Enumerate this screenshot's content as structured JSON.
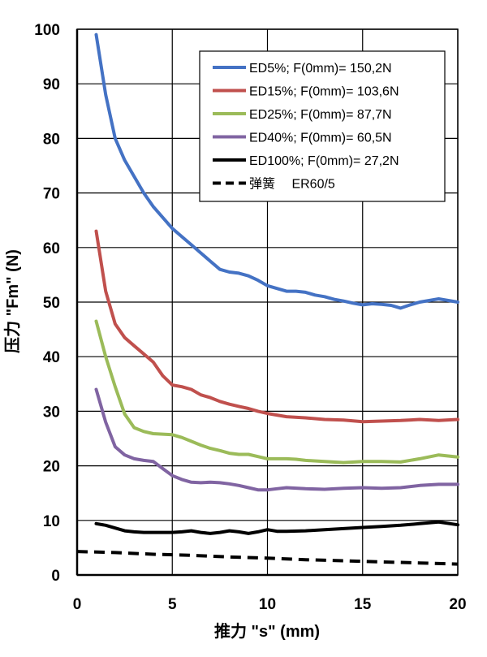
{
  "chart_data": {
    "type": "line",
    "title": "",
    "xlabel": "推力 \"s\" (mm)",
    "ylabel": "压力 \"Fm\" (N)",
    "xlim": [
      0,
      20
    ],
    "ylim": [
      0,
      100
    ],
    "xticks": [
      0,
      5,
      10,
      15,
      20
    ],
    "yticks": [
      0,
      10,
      20,
      30,
      40,
      50,
      60,
      70,
      80,
      90,
      100
    ],
    "grid": true,
    "legend_position": "top-right",
    "series": [
      {
        "name": "ED5%; F(0mm)= 150,2N",
        "color": "#4472C4",
        "style": "solid",
        "points": [
          [
            1,
            99
          ],
          [
            1.5,
            88
          ],
          [
            2,
            80
          ],
          [
            2.5,
            76
          ],
          [
            3,
            73
          ],
          [
            3.5,
            70
          ],
          [
            4,
            67.5
          ],
          [
            4.5,
            65.5
          ],
          [
            5,
            63.5
          ],
          [
            5.5,
            62
          ],
          [
            6,
            60.5
          ],
          [
            6.5,
            59
          ],
          [
            7,
            57.5
          ],
          [
            7.5,
            56
          ],
          [
            8,
            55.5
          ],
          [
            8.5,
            55.3
          ],
          [
            9,
            54.8
          ],
          [
            9.5,
            54
          ],
          [
            10,
            53
          ],
          [
            10.5,
            52.5
          ],
          [
            11,
            52
          ],
          [
            11.5,
            52
          ],
          [
            12,
            51.8
          ],
          [
            12.5,
            51.3
          ],
          [
            13,
            51
          ],
          [
            13.5,
            50.5
          ],
          [
            14,
            50.2
          ],
          [
            14.5,
            49.8
          ],
          [
            15,
            49.5
          ],
          [
            15.5,
            49.7
          ],
          [
            16,
            49.6
          ],
          [
            16.5,
            49.4
          ],
          [
            17,
            48.9
          ],
          [
            17.5,
            49.5
          ],
          [
            18,
            50
          ],
          [
            18.5,
            50.3
          ],
          [
            19,
            50.6
          ],
          [
            19.5,
            50.3
          ],
          [
            20,
            50
          ]
        ]
      },
      {
        "name": "ED15%; F(0mm)= 103,6N",
        "color": "#C0504D",
        "style": "solid",
        "points": [
          [
            1,
            63
          ],
          [
            1.5,
            52
          ],
          [
            2,
            46
          ],
          [
            2.5,
            43.5
          ],
          [
            3,
            42
          ],
          [
            3.5,
            40.5
          ],
          [
            4,
            39
          ],
          [
            4.5,
            36.5
          ],
          [
            5,
            34.8
          ],
          [
            5.5,
            34.5
          ],
          [
            6,
            34
          ],
          [
            6.5,
            33
          ],
          [
            7,
            32.5
          ],
          [
            7.5,
            31.8
          ],
          [
            8,
            31.3
          ],
          [
            8.5,
            30.9
          ],
          [
            9,
            30.5
          ],
          [
            9.5,
            30
          ],
          [
            10,
            29.6
          ],
          [
            10.5,
            29.3
          ],
          [
            11,
            29
          ],
          [
            12,
            28.8
          ],
          [
            13,
            28.5
          ],
          [
            14,
            28.4
          ],
          [
            15,
            28.1
          ],
          [
            16,
            28.2
          ],
          [
            17,
            28.3
          ],
          [
            18,
            28.5
          ],
          [
            19,
            28.3
          ],
          [
            20,
            28.5
          ]
        ]
      },
      {
        "name": "ED25%; F(0mm)= 87,7N",
        "color": "#9BBB59",
        "style": "solid",
        "points": [
          [
            1,
            46.5
          ],
          [
            1.5,
            40
          ],
          [
            2,
            34.5
          ],
          [
            2.5,
            29.5
          ],
          [
            3,
            27
          ],
          [
            3.5,
            26.3
          ],
          [
            4,
            25.9
          ],
          [
            4.5,
            25.8
          ],
          [
            5,
            25.7
          ],
          [
            5.5,
            25.2
          ],
          [
            6,
            24.5
          ],
          [
            6.5,
            23.8
          ],
          [
            7,
            23.2
          ],
          [
            7.5,
            22.8
          ],
          [
            8,
            22.3
          ],
          [
            8.5,
            22.1
          ],
          [
            9,
            22.1
          ],
          [
            9.5,
            21.7
          ],
          [
            10,
            21.3
          ],
          [
            10.5,
            21.3
          ],
          [
            11,
            21.3
          ],
          [
            11.5,
            21.2
          ],
          [
            12,
            21
          ],
          [
            13,
            20.8
          ],
          [
            14,
            20.6
          ],
          [
            15,
            20.8
          ],
          [
            16,
            20.8
          ],
          [
            17,
            20.7
          ],
          [
            18,
            21.3
          ],
          [
            19,
            22
          ],
          [
            20,
            21.6
          ]
        ]
      },
      {
        "name": "ED40%; F(0mm)= 60,5N",
        "color": "#8064A2",
        "style": "solid",
        "points": [
          [
            1,
            34
          ],
          [
            1.5,
            28
          ],
          [
            2,
            23.5
          ],
          [
            2.5,
            22
          ],
          [
            3,
            21.3
          ],
          [
            3.5,
            21
          ],
          [
            4,
            20.8
          ],
          [
            4.5,
            19.5
          ],
          [
            5,
            18.2
          ],
          [
            5.5,
            17.5
          ],
          [
            6,
            17
          ],
          [
            6.5,
            16.9
          ],
          [
            7,
            17
          ],
          [
            7.5,
            16.9
          ],
          [
            8,
            16.7
          ],
          [
            8.5,
            16.4
          ],
          [
            9,
            16
          ],
          [
            9.5,
            15.6
          ],
          [
            10,
            15.6
          ],
          [
            10.5,
            15.8
          ],
          [
            11,
            16
          ],
          [
            12,
            15.8
          ],
          [
            13,
            15.7
          ],
          [
            14,
            15.9
          ],
          [
            15,
            16
          ],
          [
            16,
            15.9
          ],
          [
            17,
            16
          ],
          [
            18,
            16.4
          ],
          [
            19,
            16.6
          ],
          [
            20,
            16.6
          ]
        ]
      },
      {
        "name": "ED100%; F(0mm)= 27,2N",
        "color": "#000000",
        "style": "solid",
        "points": [
          [
            1,
            9.4
          ],
          [
            1.5,
            9.1
          ],
          [
            2,
            8.6
          ],
          [
            2.5,
            8.1
          ],
          [
            3,
            7.9
          ],
          [
            3.5,
            7.8
          ],
          [
            4,
            7.8
          ],
          [
            4.5,
            7.8
          ],
          [
            5,
            7.8
          ],
          [
            5.5,
            7.9
          ],
          [
            6,
            8.1
          ],
          [
            6.5,
            7.8
          ],
          [
            7,
            7.6
          ],
          [
            7.5,
            7.8
          ],
          [
            8,
            8.1
          ],
          [
            8.5,
            7.9
          ],
          [
            9,
            7.6
          ],
          [
            9.5,
            7.9
          ],
          [
            10,
            8.3
          ],
          [
            10.5,
            8
          ],
          [
            11,
            8
          ],
          [
            12,
            8.1
          ],
          [
            13,
            8.3
          ],
          [
            14,
            8.5
          ],
          [
            15,
            8.7
          ],
          [
            16,
            8.9
          ],
          [
            17,
            9.1
          ],
          [
            18,
            9.4
          ],
          [
            19,
            9.7
          ],
          [
            20,
            9.2
          ]
        ]
      },
      {
        "name": "弹簧　 ER60/5",
        "color": "#000000",
        "style": "dashed",
        "points": [
          [
            0,
            4.3
          ],
          [
            2,
            4.1
          ],
          [
            4,
            3.8
          ],
          [
            6,
            3.6
          ],
          [
            8,
            3.3
          ],
          [
            10,
            3.1
          ],
          [
            12,
            2.8
          ],
          [
            14,
            2.6
          ],
          [
            16,
            2.4
          ],
          [
            18,
            2.2
          ],
          [
            20,
            2
          ]
        ]
      }
    ]
  }
}
